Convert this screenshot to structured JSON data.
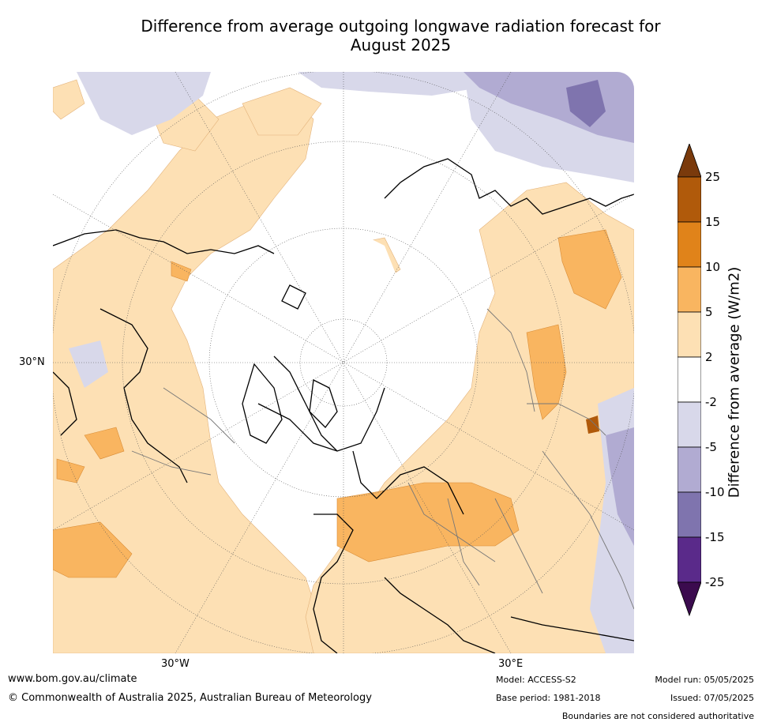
{
  "title": "Difference from average outgoing longwave radiation forecast for August 2025",
  "map": {
    "lat_label": "30°N",
    "lon_labels": [
      "30°W",
      "30°E"
    ]
  },
  "colorbar": {
    "label": "Difference from average (W/m2)",
    "ticks": [
      "25",
      "15",
      "10",
      "5",
      "2",
      "-2",
      "-5",
      "-10",
      "-15",
      "-25"
    ],
    "colors": [
      "#7a3a0c",
      "#b05a0b",
      "#e0831a",
      "#f9b560",
      "#fde0b4",
      "#ffffff",
      "#d8d8ea",
      "#b1abd2",
      "#7f74ae",
      "#5a2a8a",
      "#3b0b4e"
    ]
  },
  "footer": {
    "url": "www.bom.gov.au/climate",
    "copyright": "© Commonwealth of Australia 2025, Australian Bureau of Meteorology",
    "model": "Model: ACCESS-S2",
    "base_period": "Base period: 1981-2018",
    "model_run": "Model run: 05/05/2025",
    "issued": "Issued: 07/05/2025",
    "boundaries": "Boundaries are not considered authoritative"
  }
}
